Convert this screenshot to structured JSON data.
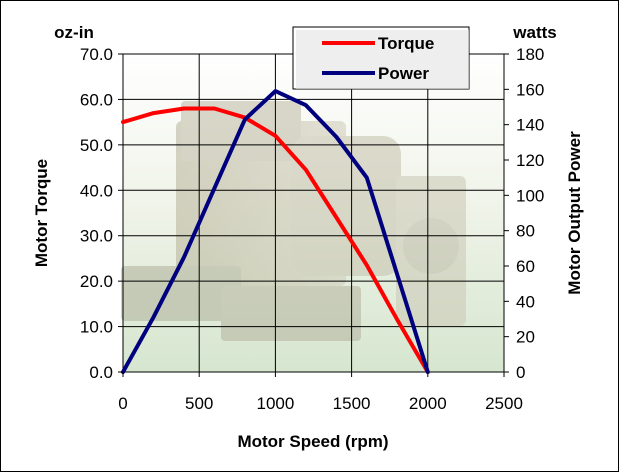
{
  "chart_data": {
    "type": "line",
    "title": "",
    "xlabel": "Motor Speed (rpm)",
    "ylabel_left": "Motor Torque",
    "ylabel_right": "Motor Output Power",
    "unit_left": "oz-in",
    "unit_right": "watts",
    "xlim": [
      0,
      2500
    ],
    "ylim_left": [
      0,
      70
    ],
    "ylim_right": [
      0,
      180
    ],
    "x_ticks": [
      "0",
      "500",
      "1000",
      "1500",
      "2000",
      "2500"
    ],
    "y_left_ticks": [
      "0.0",
      "10.0",
      "20.0",
      "30.0",
      "40.0",
      "50.0",
      "60.0",
      "70.0"
    ],
    "y_right_ticks": [
      "0",
      "20",
      "40",
      "60",
      "80",
      "100",
      "120",
      "140",
      "160",
      "180"
    ],
    "grid": true,
    "legend_position": "top-right",
    "series": [
      {
        "name": "Torque",
        "axis": "left",
        "color": "#ff0000",
        "x": [
          0,
          200,
          400,
          600,
          800,
          1000,
          1200,
          1400,
          1600,
          1800,
          2000
        ],
        "y": [
          55,
          57,
          58,
          58,
          56,
          52,
          44.5,
          34,
          23.5,
          11.5,
          0
        ]
      },
      {
        "name": "Power",
        "axis": "right",
        "color": "#00007f",
        "x": [
          0,
          200,
          400,
          600,
          800,
          1000,
          1200,
          1400,
          1600,
          1800,
          2000
        ],
        "y": [
          0,
          31,
          65,
          104,
          143,
          159,
          151,
          133,
          110,
          55,
          0
        ]
      }
    ]
  }
}
